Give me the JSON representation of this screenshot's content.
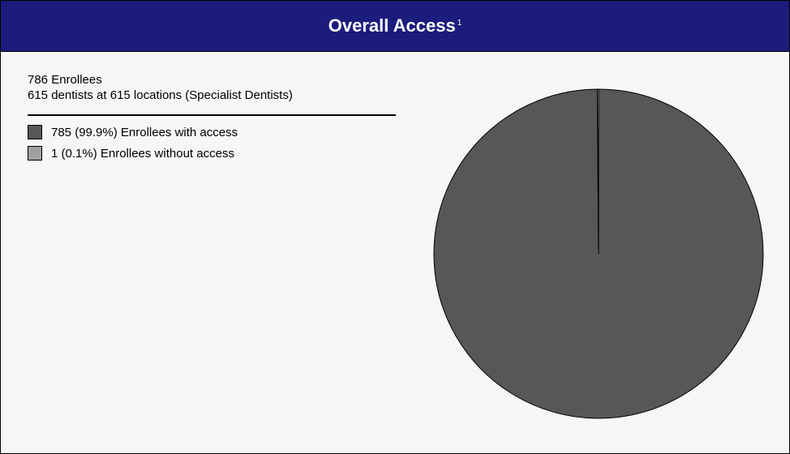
{
  "header": {
    "title": "Overall Access",
    "footnote_mark": "1"
  },
  "info": {
    "enrollees": "786 Enrollees",
    "dentists": "615 dentists at 615 locations (Specialist Dentists)"
  },
  "legend": {
    "items": [
      {
        "label": "785 (99.9%) Enrollees with access",
        "color": "#575757"
      },
      {
        "label": "1 (0.1%) Enrollees without access",
        "color": "#a0a0a0"
      }
    ]
  },
  "chart_data": {
    "type": "pie",
    "title": "Overall Access",
    "categories": [
      "Enrollees with access",
      "Enrollees without access"
    ],
    "values": [
      785,
      1
    ],
    "percentages": [
      99.9,
      0.1
    ],
    "colors": [
      "#575757",
      "#a0a0a0"
    ],
    "legend_position": "top-left"
  }
}
